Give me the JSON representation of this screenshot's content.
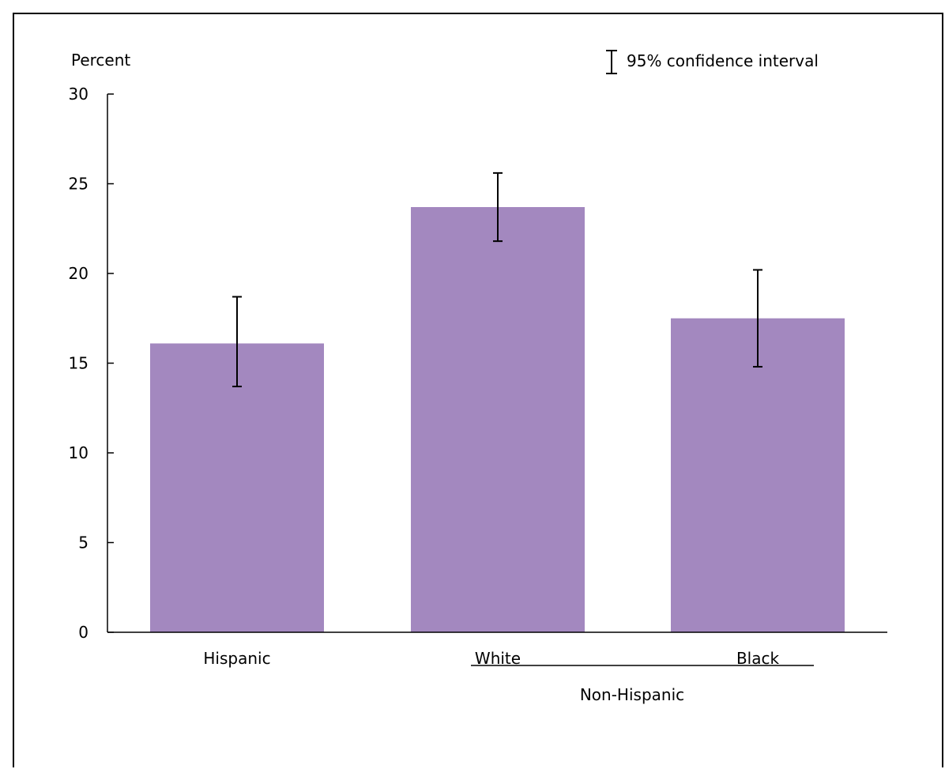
{
  "chart_data": {
    "type": "bar",
    "ylabel": "Percent",
    "ylim": [
      0,
      30
    ],
    "yticks": [
      0,
      5,
      10,
      15,
      20,
      25,
      30
    ],
    "categories": [
      "Hispanic",
      "White",
      "Black"
    ],
    "values": [
      16.1,
      23.7,
      17.5
    ],
    "ci_lower": [
      13.7,
      21.8,
      14.8
    ],
    "ci_upper": [
      18.7,
      25.6,
      20.2
    ],
    "bar_color": "#a388bf",
    "legend": {
      "label": "95% confidence interval",
      "position": "top-right"
    },
    "group_label": {
      "text": "Non-Hispanic",
      "categories": [
        "White",
        "Black"
      ]
    },
    "grid": false
  }
}
